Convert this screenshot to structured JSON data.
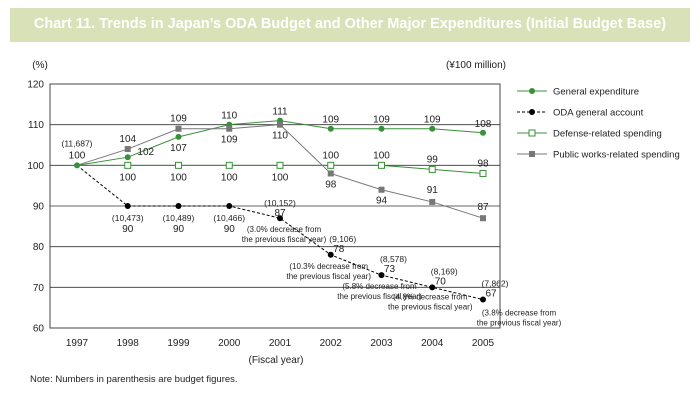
{
  "chart_data": {
    "type": "line",
    "title": "Chart 11. Trends in Japan’s ODA Budget and Other Major Expenditures (Initial Budget Base)",
    "ylabel": "(%)",
    "unit_label": "(¥100 million)",
    "xlabel": "(Fiscal year)",
    "ylim": [
      60,
      120
    ],
    "yticks": [
      60,
      70,
      80,
      90,
      100,
      110,
      120
    ],
    "x": [
      "1997",
      "1998",
      "1999",
      "2000",
      "2001",
      "2002",
      "2003",
      "2004",
      "2005"
    ],
    "grid": "horizontal",
    "legend_position": "right",
    "series": [
      {
        "key": "general",
        "name": "General expenditure",
        "values": [
          100,
          102,
          107,
          110,
          111,
          109,
          109,
          109,
          108
        ],
        "labels": [
          "",
          "102",
          "107",
          "110",
          "111",
          "109",
          "109",
          "109",
          "108"
        ],
        "color": "#3a8f3a",
        "marker": "filled-circle",
        "line": "solid"
      },
      {
        "key": "oda",
        "name": "ODA general account",
        "values": [
          100,
          90,
          90,
          90,
          87,
          78,
          73,
          70,
          67
        ],
        "labels": [
          "",
          "90",
          "90",
          "90",
          "87",
          "78",
          "73",
          "70",
          "67"
        ],
        "color": "#000000",
        "marker": "filled-circle",
        "line": "dashed"
      },
      {
        "key": "defense",
        "name": "Defense-related spending",
        "values": [
          100,
          100,
          100,
          100,
          100,
          100,
          100,
          99,
          98
        ],
        "labels": [
          "",
          "100",
          "100",
          "100",
          "100",
          "100",
          "100",
          "99",
          "98"
        ],
        "color": "#3a8f3a",
        "marker": "open-square",
        "line": "solid"
      },
      {
        "key": "public",
        "name": "Public works-related spending",
        "values": [
          100,
          104,
          109,
          109,
          110,
          98,
          94,
          91,
          87
        ],
        "labels": [
          "",
          "104",
          "109",
          "109",
          "110",
          "98",
          "94",
          "91",
          "87"
        ],
        "color": "#777777",
        "marker": "filled-square",
        "line": "solid"
      }
    ],
    "start_label": {
      "figure": "(11,687)",
      "value": "100"
    },
    "oda_budget_figures": [
      "(11,687)",
      "(10,473)",
      "(10,489)",
      "(10,466)",
      "(10,152)",
      "(9,106)",
      "(8,578)",
      "(8,169)",
      "(7,862)"
    ],
    "annotations": [
      {
        "year": "2001",
        "lines": [
          "(3.0% decrease from",
          "the previous fiscal year)"
        ]
      },
      {
        "year": "2002",
        "lines": [
          "(10.3% decrease from",
          "the previous fiscal year)"
        ]
      },
      {
        "year": "2003",
        "lines": [
          "(5.8% decrease from",
          "the previous fiscal year)"
        ]
      },
      {
        "year": "2004",
        "lines": [
          "(4.8% decrease from",
          "the previous fiscal year)"
        ]
      },
      {
        "year": "2005",
        "lines": [
          "(3.8% decrease from",
          "the previous fiscal year)"
        ]
      }
    ]
  },
  "note": "Note: Numbers in parenthesis are budget figures."
}
